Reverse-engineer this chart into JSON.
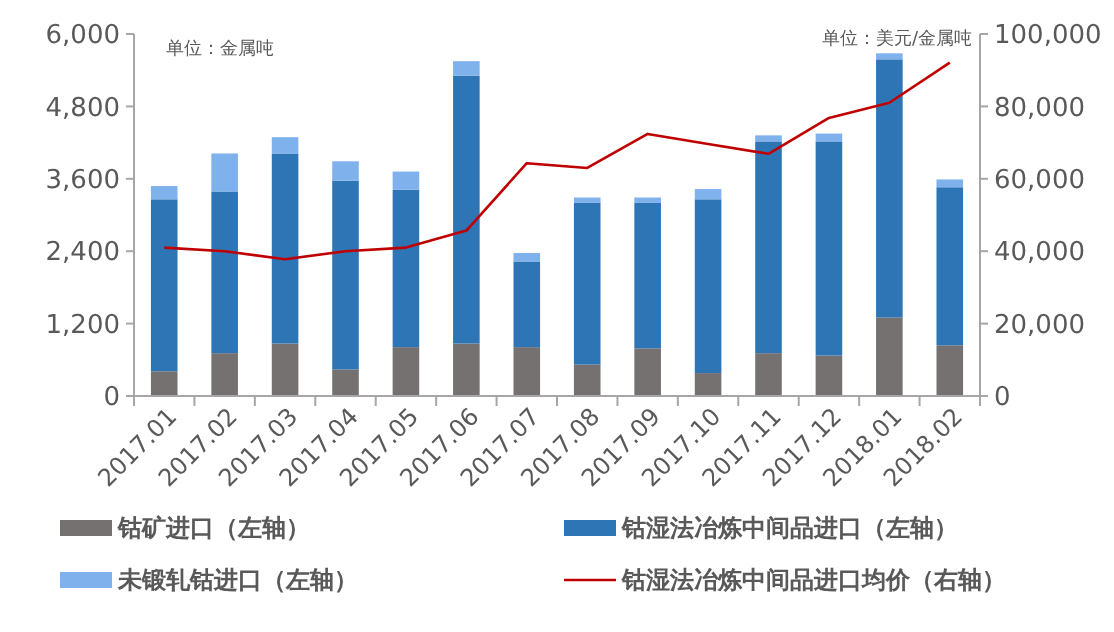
{
  "chart_data": {
    "type": "bar",
    "stacked": true,
    "categories": [
      "2017.01",
      "2017.02",
      "2017.03",
      "2017.04",
      "2017.05",
      "2017.06",
      "2017.07",
      "2017.08",
      "2017.09",
      "2017.10",
      "2017.11",
      "2017.12",
      "2018.01",
      "2018.02"
    ],
    "series": [
      {
        "name": "钴矿进口（左轴）",
        "color": "#767171",
        "values": [
          410,
          710,
          870,
          440,
          810,
          870,
          810,
          520,
          790,
          380,
          710,
          670,
          1300,
          840
        ]
      },
      {
        "name": "钴湿法冶炼中间品进口（左轴）",
        "color": "#2e75b6",
        "values": [
          2850,
          2680,
          3150,
          3130,
          2610,
          4440,
          1420,
          2680,
          2410,
          2880,
          3510,
          3550,
          4280,
          2620
        ]
      },
      {
        "name": "未锻轧钴进口（左轴）",
        "color": "#7fb2ec",
        "values": [
          220,
          630,
          270,
          320,
          300,
          240,
          140,
          90,
          90,
          170,
          100,
          130,
          100,
          130
        ]
      },
      {
        "name": "钴湿法冶炼中间品进口均价（右轴）",
        "type": "line",
        "axis": "y2",
        "color": "#c00000",
        "values": [
          41000,
          40000,
          37800,
          40000,
          41000,
          45700,
          64300,
          63000,
          72400,
          69600,
          66900,
          76800,
          81000,
          92100
        ]
      }
    ],
    "ylim": [
      0,
      6000
    ],
    "yticks": [
      {
        "value": 0,
        "label": "0"
      },
      {
        "value": 1200,
        "label": "1,200"
      },
      {
        "value": 2400,
        "label": "2,400"
      },
      {
        "value": 3600,
        "label": "3,600"
      },
      {
        "value": 4800,
        "label": "4,800"
      },
      {
        "value": 6000,
        "label": "6,000"
      }
    ],
    "y2lim": [
      0,
      100000
    ],
    "y2ticks": [
      {
        "value": 0,
        "label": "0"
      },
      {
        "value": 20000,
        "label": "20,000"
      },
      {
        "value": 40000,
        "label": "40,000"
      },
      {
        "value": 60000,
        "label": "60,000"
      },
      {
        "value": 80000,
        "label": "80,000"
      },
      {
        "value": 100000,
        "label": "100,000"
      }
    ],
    "annotations": [
      "单位：金属吨",
      "单位：美元/金属吨"
    ],
    "grid": false,
    "legend": "bottom"
  }
}
